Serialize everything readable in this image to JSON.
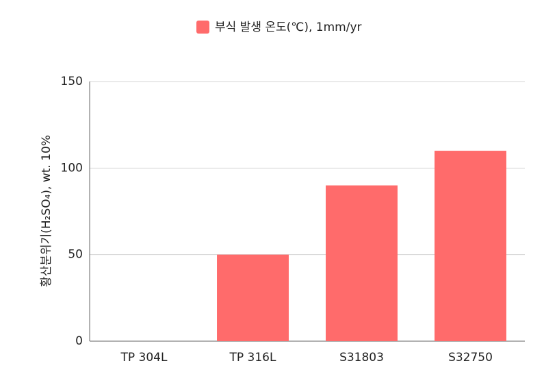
{
  "chart_data": {
    "type": "bar",
    "categories": [
      "TP 304L",
      "TP 316L",
      "S31803",
      "S32750"
    ],
    "series": [
      {
        "name": "부식 발생 온도(℃), 1mm/yr",
        "color": "#ff6b6b",
        "values": [
          0,
          50,
          90,
          110
        ]
      }
    ],
    "y_label": "황산분위기(H₂SO₄), wt. 10%",
    "ylim": [
      0,
      150
    ],
    "yticks": [
      0,
      50,
      100,
      150
    ],
    "grid": true,
    "legend": "top"
  }
}
